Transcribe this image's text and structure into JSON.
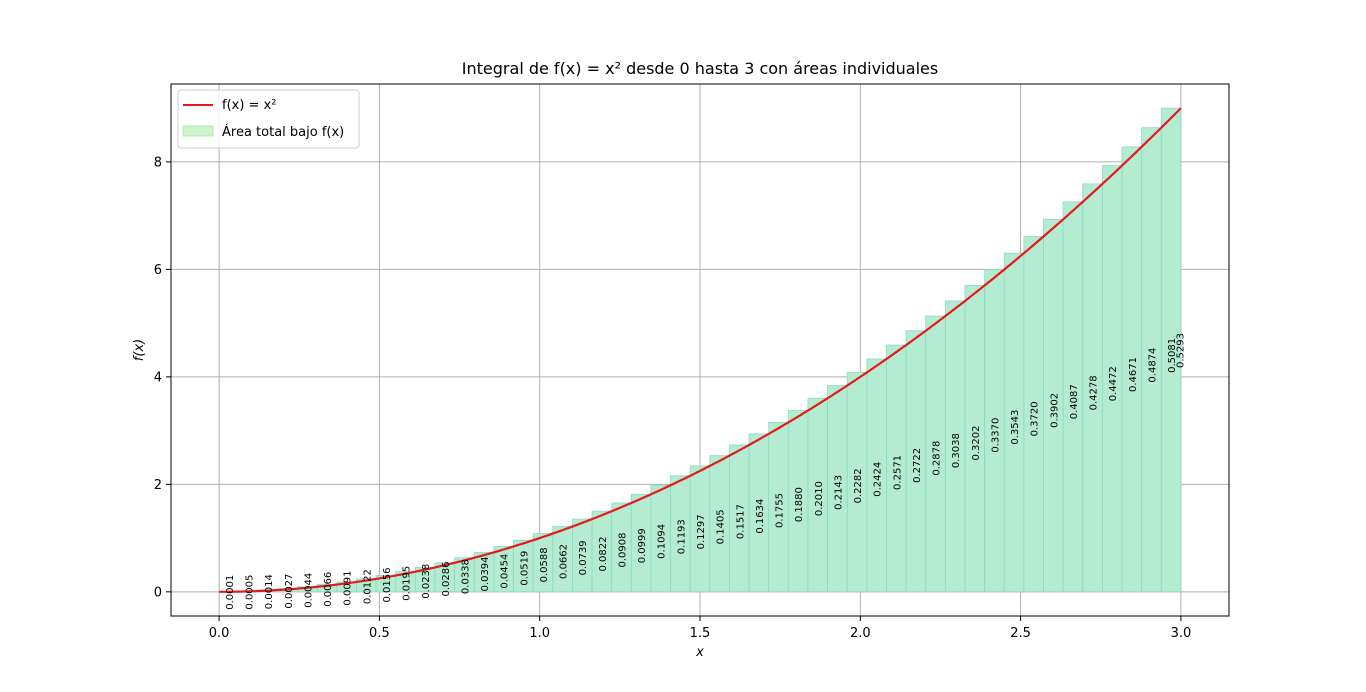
{
  "chart_data": {
    "type": "area",
    "title": "Integral de f(x) = x² desde 0 hasta 3 con áreas individuales",
    "xlabel": "x",
    "ylabel": "f(x)",
    "xlim": [
      -0.15,
      3.15
    ],
    "ylim": [
      -0.45,
      9.45
    ],
    "x_ticks": [
      "0.0",
      "0.5",
      "1.0",
      "1.5",
      "2.0",
      "2.5",
      "3.0"
    ],
    "y_ticks": [
      "0",
      "2",
      "4",
      "6",
      "8"
    ],
    "grid": true,
    "legend_position": "top-left",
    "series": [
      {
        "name": "f(x) = x²",
        "kind": "line",
        "color": "#e41a1c",
        "function": "x^2",
        "x_range": [
          0,
          3
        ]
      },
      {
        "name": "Área total bajo f(x)",
        "kind": "area",
        "color": "#90ee90"
      }
    ],
    "interval_width": 0.0612,
    "individual_areas": [
      "0.0001",
      "0.0005",
      "0.0014",
      "0.0027",
      "0.0044",
      "0.0066",
      "0.0091",
      "0.0122",
      "0.0156",
      "0.0195",
      "0.0238",
      "0.0286",
      "0.0338",
      "0.0394",
      "0.0454",
      "0.0519",
      "0.0588",
      "0.0662",
      "0.0739",
      "0.0822",
      "0.0908",
      "0.0999",
      "0.1094",
      "0.1193",
      "0.1297",
      "0.1405",
      "0.1517",
      "0.1634",
      "0.1755",
      "0.1880",
      "0.2010",
      "0.2143",
      "0.2282",
      "0.2424",
      "0.2571",
      "0.2722",
      "0.2878",
      "0.3038",
      "0.3202",
      "0.3370",
      "0.3543",
      "0.3720",
      "0.3902",
      "0.4087",
      "0.4278",
      "0.4472",
      "0.4671",
      "0.4874",
      "0.5081",
      "0.5293"
    ],
    "colors": {
      "curve": "#e41a1c",
      "fill": "#b3ecd0",
      "bar_edge": "#8fd8c8",
      "legend_fill": "#ccf5cc",
      "grid": "#b0b0b0"
    }
  }
}
